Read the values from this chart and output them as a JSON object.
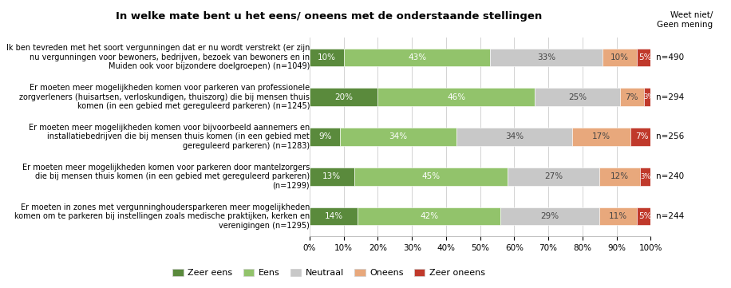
{
  "title": "In welke mate bent u het eens/ oneens met de onderstaande stellingen",
  "top_right_label": "Weet niet/\nGeen mening",
  "categories": [
    "Ik ben tevreden met het soort vergunningen dat er nu wordt verstrekt (er zijn\nnu vergunningen voor bewoners, bedrijven, bezoek van bewoners en in\nMuiden ook voor bijzondere doelgroepen) (n=1049)",
    "Er moeten meer mogelijkheden komen voor parkeren van professionele\nzorgverleners (huisartsen, verloskundigen, thuiszorg) die bij mensen thuis\nkomen (in een gebied met gereguleerd parkeren) (n=1245)",
    "Er moeten meer mogelijkheden komen voor bijvoorbeeld aannemers en\ninstallatiebedrijven die bij mensen thuis komen (in een gebied met\ngereguleerd parkeren) (n=1283)",
    "Er moeten meer mogelijkheden komen voor parkeren door mantelzorgers\ndie bij mensen thuis komen (in een gebied met gereguleerd parkeren)\n(n=1299)",
    "Er moeten in zones met vergunninghoudersparkeren meer mogelijkheden\nkomen om te parkeren bij instellingen zoals medische praktijken, kerken en\nverenigingen (n=1295)"
  ],
  "n_labels": [
    "n=490",
    "n=294",
    "n=256",
    "n=240",
    "n=244"
  ],
  "data": [
    [
      10,
      43,
      33,
      10,
      5
    ],
    [
      20,
      46,
      25,
      7,
      3
    ],
    [
      9,
      34,
      34,
      17,
      7
    ],
    [
      13,
      45,
      27,
      12,
      3
    ],
    [
      14,
      42,
      29,
      11,
      5
    ]
  ],
  "series_labels": [
    "Zeer eens",
    "Eens",
    "Neutraal",
    "Oneens",
    "Zeer oneens"
  ],
  "colors": [
    "#5a8a3c",
    "#92c36b",
    "#c8c8c8",
    "#e8a87c",
    "#c0392b"
  ],
  "xticks": [
    0,
    10,
    20,
    30,
    40,
    50,
    60,
    70,
    80,
    90,
    100
  ],
  "xtick_labels": [
    "0%",
    "10%",
    "20%",
    "30%",
    "40%",
    "50%",
    "60%",
    "70%",
    "80%",
    "90%",
    "100%"
  ],
  "figsize": [
    9.16,
    3.61
  ],
  "dpi": 100
}
